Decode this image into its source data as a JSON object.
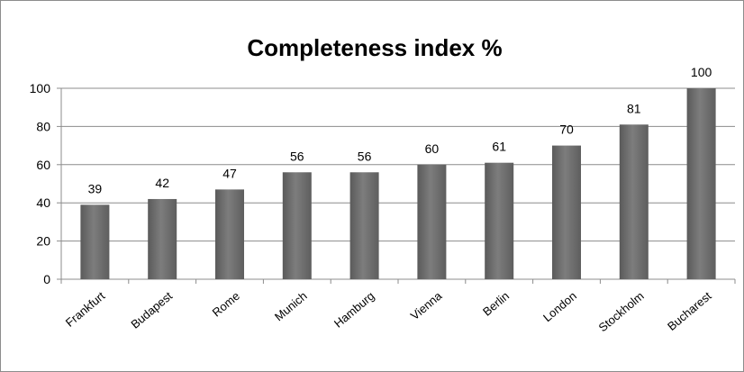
{
  "chart_data": {
    "type": "bar",
    "title": "Completeness index %",
    "categories": [
      "Frankfurt",
      "Budapest",
      "Rome",
      "Munich",
      "Hamburg",
      "Vienna",
      "Berlin",
      "London",
      "Stockholm",
      "Bucharest"
    ],
    "values": [
      39,
      42,
      47,
      56,
      56,
      60,
      61,
      70,
      81,
      100
    ],
    "data_labels": [
      "39",
      "42",
      "47",
      "56",
      "56",
      "60",
      "61",
      "70",
      "81",
      "100"
    ],
    "ylim": [
      0,
      100
    ],
    "yticks": [
      "0",
      "20",
      "40",
      "60",
      "80",
      "100"
    ],
    "grid": true,
    "legend": "none",
    "xlabel": "",
    "ylabel": "",
    "colors": {
      "bar": "#6e6e6e",
      "grid": "#8c8c8c",
      "axis": "#8c8c8c"
    }
  }
}
